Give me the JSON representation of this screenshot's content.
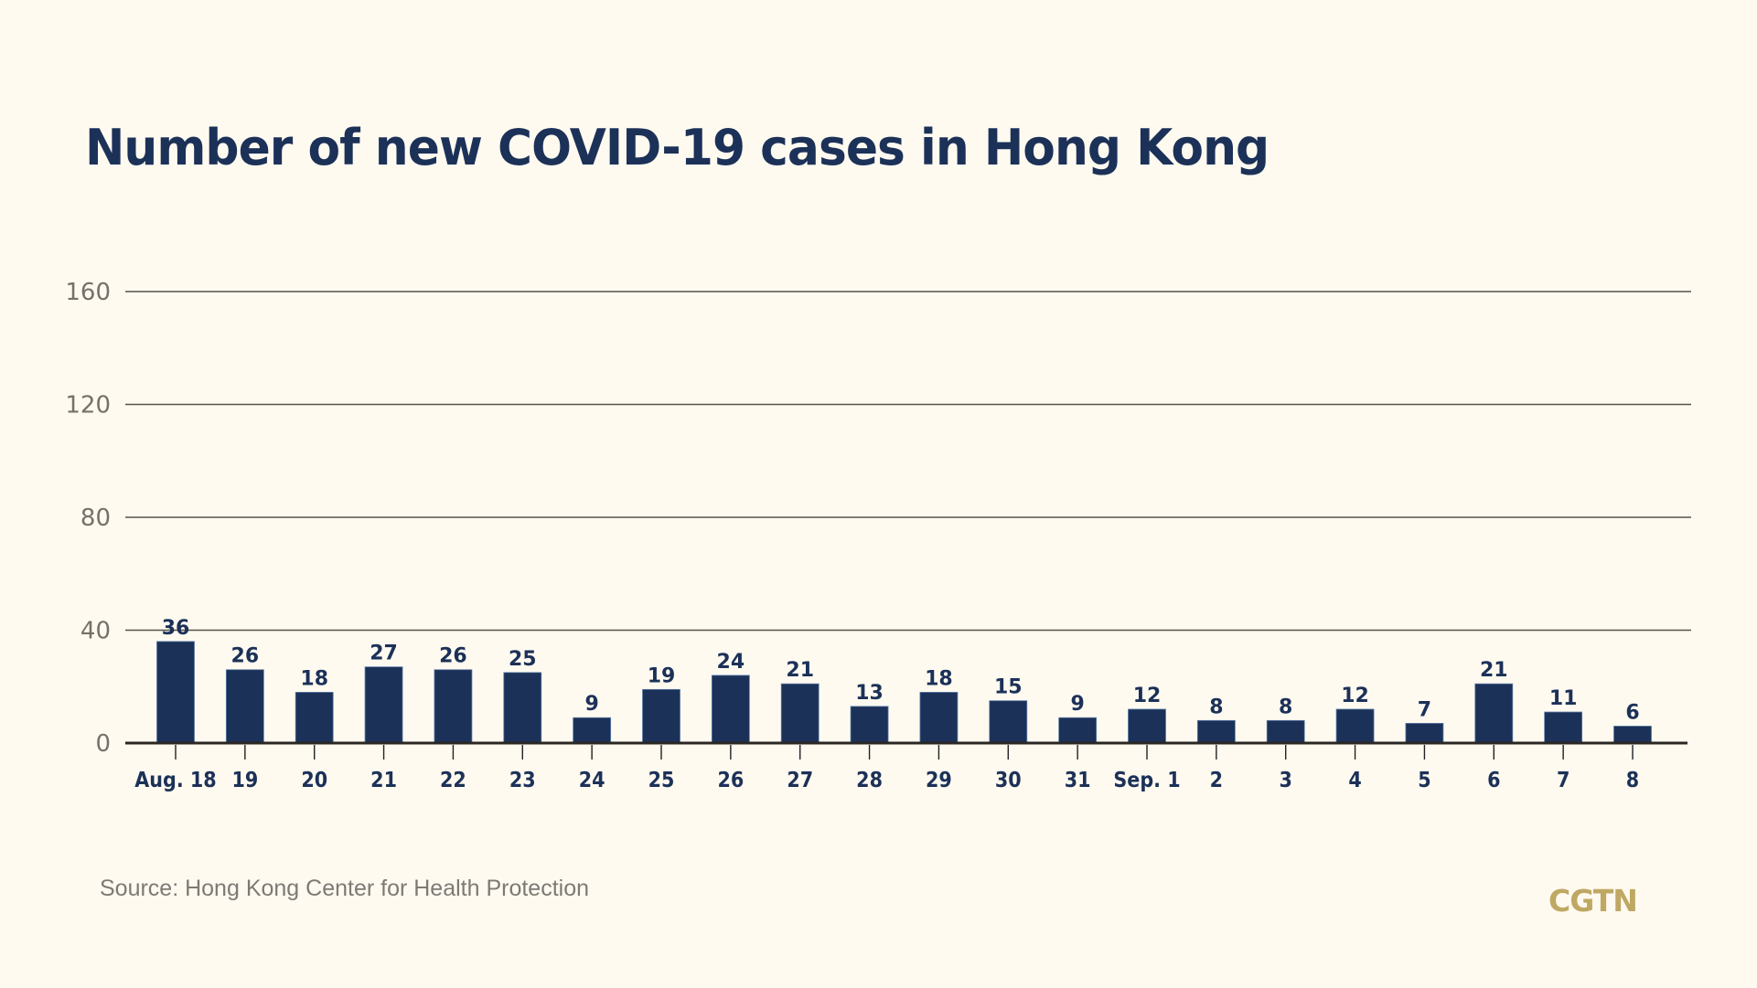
{
  "chart_data": {
    "type": "bar",
    "title": "Number of new COVID-19 cases in Hong Kong",
    "xlabel": "",
    "ylabel": "",
    "ylim": [
      0,
      160
    ],
    "yticks": [
      0,
      40,
      80,
      120,
      160
    ],
    "grid": true,
    "legend": "none",
    "categories": [
      "Aug. 18",
      "19",
      "20",
      "21",
      "22",
      "23",
      "24",
      "25",
      "26",
      "27",
      "28",
      "29",
      "30",
      "31",
      "Sep. 1",
      "2",
      "3",
      "4",
      "5",
      "6",
      "7",
      "8"
    ],
    "values": [
      36,
      26,
      18,
      27,
      26,
      25,
      9,
      19,
      24,
      21,
      13,
      18,
      15,
      9,
      12,
      8,
      8,
      12,
      7,
      21,
      11,
      6
    ],
    "data_labels": true,
    "bar_color": "#1c3158"
  },
  "source": "Source: Hong Kong Center for Health Protection",
  "brand": "CGTN",
  "colors": {
    "background": "#fffaf0",
    "bar": "#1c3158",
    "title": "#1c3158",
    "brand": "#bfa863",
    "axis_text": "#777069"
  }
}
